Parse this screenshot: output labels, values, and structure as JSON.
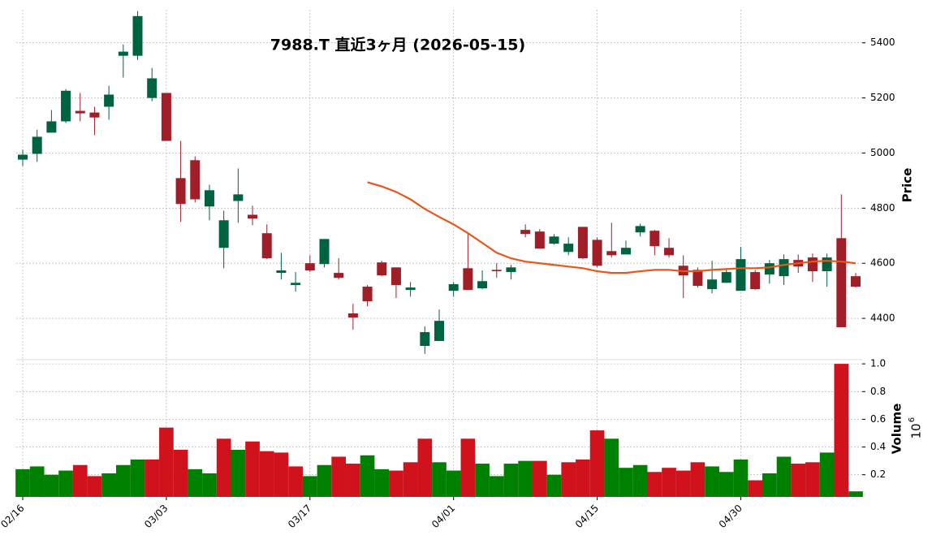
{
  "chart_data": {
    "type": "candlestick",
    "title": "7988.T  直近3ヶ月  (2026-05-15)",
    "categories": [
      "02/16",
      null,
      null,
      null,
      null,
      null,
      null,
      null,
      null,
      null,
      "03/03",
      null,
      null,
      null,
      null,
      null,
      null,
      null,
      null,
      null,
      "03/17",
      null,
      null,
      null,
      null,
      null,
      null,
      null,
      null,
      null,
      "04/01",
      null,
      null,
      null,
      null,
      null,
      null,
      null,
      null,
      null,
      "04/15",
      null,
      null,
      null,
      null,
      null,
      null,
      null,
      null,
      null,
      "04/30",
      null,
      null,
      null,
      null,
      null,
      null,
      null,
      null
    ],
    "open": [
      4976,
      4997,
      5074,
      5115,
      5153,
      5147,
      5168,
      5353,
      5353,
      5200,
      5218,
      4909,
      4974,
      4806,
      4656,
      4826,
      4776,
      4709,
      4565,
      4521,
      4600,
      4597,
      4565,
      4418,
      4515,
      4603,
      4585,
      4503,
      4300,
      4318,
      4500,
      4582,
      4509,
      4576,
      4568,
      4721,
      4715,
      4671,
      4641,
      4732,
      4685,
      4644,
      4632,
      4712,
      4718,
      4656,
      4591,
      4576,
      4506,
      4529,
      4500,
      4568,
      4559,
      4553,
      4612,
      4621,
      4571,
      4691,
      4553
    ],
    "high": [
      5012,
      5085,
      5156,
      5232,
      5218,
      5168,
      5244,
      5394,
      5515,
      5309,
      5218,
      5044,
      4988,
      4885,
      4791,
      4944,
      4809,
      4741,
      4638,
      4568,
      4629,
      4688,
      4618,
      4453,
      4521,
      4609,
      4585,
      4532,
      4371,
      4432,
      4532,
      4712,
      4574,
      4600,
      4594,
      4741,
      4724,
      4706,
      4694,
      4732,
      4694,
      4747,
      4682,
      4744,
      4721,
      4691,
      4629,
      4585,
      4609,
      4576,
      4659,
      4576,
      4612,
      4632,
      4632,
      4635,
      4635,
      4850,
      4565
    ],
    "low": [
      4953,
      4968,
      5074,
      5109,
      5115,
      5065,
      5121,
      5274,
      5338,
      5188,
      5044,
      4750,
      4821,
      4756,
      4582,
      4747,
      4738,
      4615,
      4541,
      4497,
      4568,
      4585,
      4541,
      4359,
      4444,
      4553,
      4474,
      4479,
      4271,
      4318,
      4479,
      4503,
      4506,
      4547,
      4541,
      4694,
      4653,
      4668,
      4629,
      4615,
      4585,
      4621,
      4632,
      4697,
      4629,
      4621,
      4474,
      4512,
      4491,
      4529,
      4500,
      4503,
      4526,
      4521,
      4565,
      4532,
      4515,
      4368,
      4512
    ],
    "close": [
      4994,
      5059,
      5115,
      5226,
      5144,
      5129,
      5212,
      5368,
      5497,
      5271,
      5044,
      4815,
      4832,
      4865,
      4756,
      4850,
      4762,
      4618,
      4574,
      4529,
      4574,
      4688,
      4547,
      4403,
      4462,
      4556,
      4521,
      4512,
      4350,
      4391,
      4524,
      4503,
      4535,
      4571,
      4585,
      4706,
      4653,
      4697,
      4671,
      4618,
      4591,
      4629,
      4656,
      4735,
      4662,
      4629,
      4556,
      4518,
      4541,
      4568,
      4615,
      4506,
      4600,
      4615,
      4588,
      4571,
      4621,
      4368,
      4515
    ],
    "moving_average": {
      "color": "#e8561a",
      "values": [
        null,
        null,
        null,
        null,
        null,
        null,
        null,
        null,
        null,
        null,
        null,
        null,
        null,
        null,
        null,
        null,
        null,
        null,
        null,
        null,
        null,
        null,
        null,
        null,
        4894,
        4879,
        4859,
        4832,
        4797,
        4768,
        4741,
        4709,
        4674,
        4638,
        4618,
        4606,
        4600,
        4594,
        4588,
        4582,
        4571,
        4565,
        4565,
        4571,
        4576,
        4576,
        4571,
        4571,
        4576,
        4579,
        4582,
        4582,
        4585,
        4594,
        4600,
        4606,
        4609,
        4606,
        4600
      ]
    },
    "up_color": "#006340",
    "down_color": "#a01e28",
    "ylabel": "Price",
    "ylim": [
      4250,
      5520
    ],
    "yticks": [
      4400,
      4600,
      4800,
      5000,
      5200,
      5400
    ],
    "grid": true,
    "volume": {
      "ylabel": "Volume",
      "multiplier": {
        "base": "10",
        "exponent": "6"
      },
      "up_color": "#008000",
      "down_color": "#d0121c",
      "ylim": [
        0.04,
        1.03
      ],
      "yticks": [
        0.2,
        0.4,
        0.6,
        0.8,
        {
          "value": 1.0,
          "label": "1.0"
        }
      ],
      "values": [
        0.24,
        0.26,
        0.2,
        0.23,
        0.27,
        0.19,
        0.21,
        0.27,
        0.31,
        0.31,
        0.54,
        0.38,
        0.24,
        0.21,
        0.46,
        0.38,
        0.44,
        0.37,
        0.36,
        0.26,
        0.19,
        0.27,
        0.33,
        0.28,
        0.34,
        0.24,
        0.23,
        0.29,
        0.46,
        0.29,
        0.23,
        0.46,
        0.28,
        0.19,
        0.28,
        0.3,
        0.3,
        0.2,
        0.29,
        0.31,
        0.52,
        0.46,
        0.25,
        0.27,
        0.22,
        0.25,
        0.23,
        0.29,
        0.26,
        0.22,
        0.31,
        0.16,
        0.21,
        0.33,
        0.28,
        0.29,
        0.36,
        1.0,
        0.08
      ]
    }
  }
}
